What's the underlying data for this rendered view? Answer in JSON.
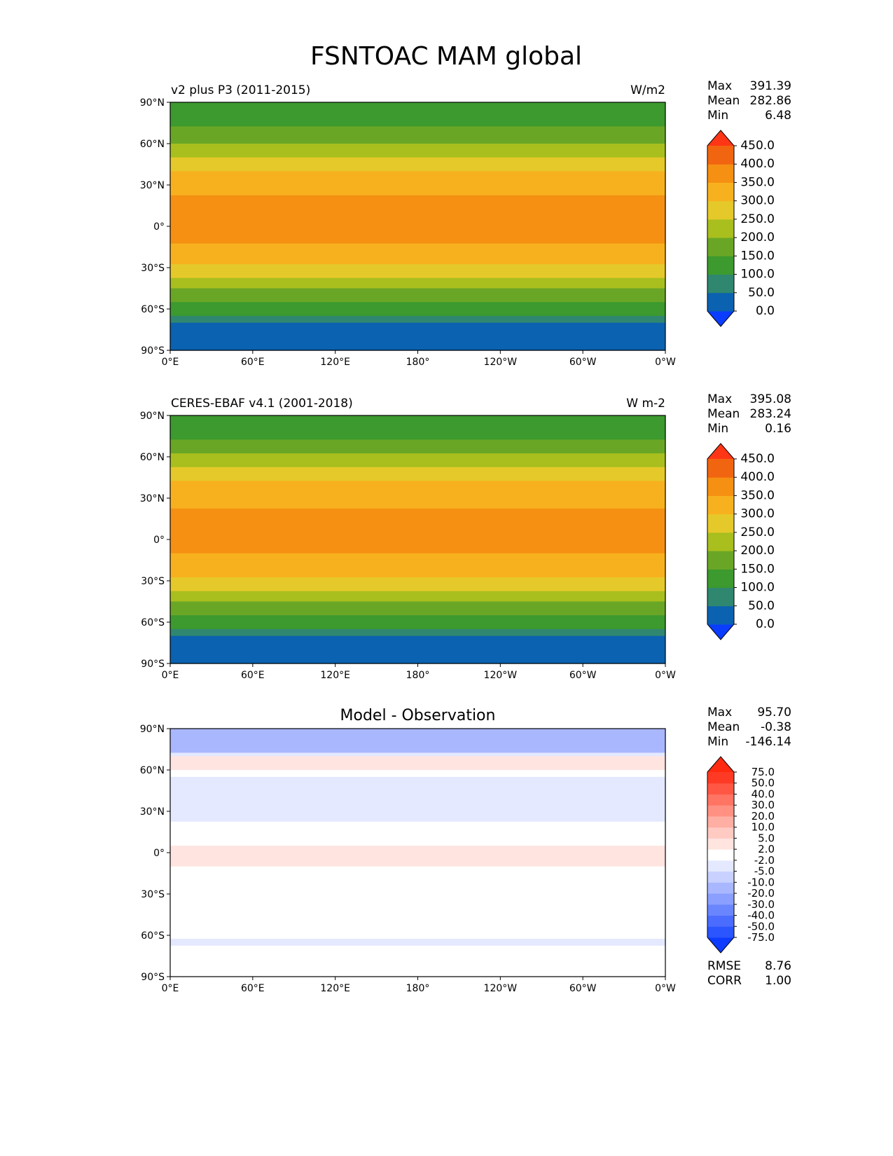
{
  "title": "FSNTOAC MAM global",
  "xticks": [
    "0°E",
    "60°E",
    "120°E",
    "180°",
    "120°W",
    "60°W",
    "0°W"
  ],
  "yticks": [
    "90°N",
    "60°N",
    "30°N",
    "0°",
    "30°S",
    "60°S",
    "90°S"
  ],
  "chart_data": [
    {
      "type": "heatmap",
      "left_title": "v2 plus P3 (2011-2015)",
      "right_title": "W/m2",
      "center_title": "",
      "stats": [
        {
          "label": "Max",
          "value": "391.39"
        },
        {
          "label": "Mean",
          "value": "282.86"
        },
        {
          "label": "Min",
          "value": "6.48"
        }
      ],
      "colorbar": {
        "levels": [
          "0.0",
          "50.0",
          "100.0",
          "150.0",
          "200.0",
          "250.0",
          "300.0",
          "350.0",
          "400.0",
          "450.0"
        ],
        "colors": [
          "#0a3dff",
          "#0b62b0",
          "#2f8770",
          "#3c9a2e",
          "#6aa626",
          "#a8bf1e",
          "#e5c92a",
          "#f8b11e",
          "#f59012",
          "#f26510",
          "#ff3616"
        ],
        "extend": "both"
      },
      "zonal_profile": [
        {
          "lat": 90,
          "value": 100
        },
        {
          "lat": 85,
          "value": 100
        },
        {
          "lat": 80,
          "value": 110
        },
        {
          "lat": 75,
          "value": 140
        },
        {
          "lat": 70,
          "value": 160
        },
        {
          "lat": 65,
          "value": 180
        },
        {
          "lat": 60,
          "value": 205
        },
        {
          "lat": 55,
          "value": 230
        },
        {
          "lat": 50,
          "value": 255
        },
        {
          "lat": 45,
          "value": 280
        },
        {
          "lat": 40,
          "value": 305
        },
        {
          "lat": 35,
          "value": 320
        },
        {
          "lat": 30,
          "value": 330
        },
        {
          "lat": 20,
          "value": 355
        },
        {
          "lat": 0,
          "value": 365
        },
        {
          "lat": -10,
          "value": 360
        },
        {
          "lat": -15,
          "value": 335
        },
        {
          "lat": -25,
          "value": 310
        },
        {
          "lat": -30,
          "value": 285
        },
        {
          "lat": -35,
          "value": 260
        },
        {
          "lat": -40,
          "value": 235
        },
        {
          "lat": -45,
          "value": 205
        },
        {
          "lat": -50,
          "value": 175
        },
        {
          "lat": -55,
          "value": 155
        },
        {
          "lat": -60,
          "value": 120
        },
        {
          "lat": -65,
          "value": 95
        },
        {
          "lat": -70,
          "value": 40
        },
        {
          "lat": -90,
          "value": 20
        }
      ]
    },
    {
      "type": "heatmap",
      "left_title": "CERES-EBAF v4.1 (2001-2018)",
      "right_title": "W m-2",
      "center_title": "",
      "stats": [
        {
          "label": "Max",
          "value": "395.08"
        },
        {
          "label": "Mean",
          "value": "283.24"
        },
        {
          "label": "Min",
          "value": "0.16"
        }
      ],
      "colorbar": {
        "levels": [
          "0.0",
          "50.0",
          "100.0",
          "150.0",
          "200.0",
          "250.0",
          "300.0",
          "350.0",
          "400.0",
          "450.0"
        ],
        "colors": [
          "#0a3dff",
          "#0b62b0",
          "#2f8770",
          "#3c9a2e",
          "#6aa626",
          "#a8bf1e",
          "#e5c92a",
          "#f8b11e",
          "#f59012",
          "#f26510",
          "#ff3616"
        ],
        "extend": "both"
      },
      "zonal_profile": [
        {
          "lat": 90,
          "value": 100
        },
        {
          "lat": 85,
          "value": 110
        },
        {
          "lat": 80,
          "value": 120
        },
        {
          "lat": 75,
          "value": 140
        },
        {
          "lat": 70,
          "value": 160
        },
        {
          "lat": 65,
          "value": 185
        },
        {
          "lat": 60,
          "value": 210
        },
        {
          "lat": 55,
          "value": 235
        },
        {
          "lat": 50,
          "value": 260
        },
        {
          "lat": 45,
          "value": 285
        },
        {
          "lat": 40,
          "value": 305
        },
        {
          "lat": 35,
          "value": 320
        },
        {
          "lat": 30,
          "value": 335
        },
        {
          "lat": 20,
          "value": 355
        },
        {
          "lat": 0,
          "value": 365
        },
        {
          "lat": -10,
          "value": 355
        },
        {
          "lat": -15,
          "value": 330
        },
        {
          "lat": -25,
          "value": 305
        },
        {
          "lat": -30,
          "value": 285
        },
        {
          "lat": -35,
          "value": 260
        },
        {
          "lat": -40,
          "value": 230
        },
        {
          "lat": -45,
          "value": 205
        },
        {
          "lat": -50,
          "value": 180
        },
        {
          "lat": -55,
          "value": 155
        },
        {
          "lat": -60,
          "value": 125
        },
        {
          "lat": -65,
          "value": 95
        },
        {
          "lat": -70,
          "value": 40
        },
        {
          "lat": -90,
          "value": 20
        }
      ]
    },
    {
      "type": "heatmap",
      "left_title": "",
      "right_title": "",
      "center_title": "Model - Observation",
      "stats": [
        {
          "label": "Max",
          "value": "95.70"
        },
        {
          "label": "Mean",
          "value": "-0.38"
        },
        {
          "label": "Min",
          "value": "-146.14"
        }
      ],
      "bottom_stats": [
        {
          "label": "RMSE",
          "value": "8.76"
        },
        {
          "label": "CORR",
          "value": "1.00"
        }
      ],
      "colorbar": {
        "levels": [
          "-75.0",
          "-50.0",
          "-40.0",
          "-30.0",
          "-20.0",
          "-10.0",
          "-5.0",
          "-2.0",
          "2.0",
          "5.0",
          "10.0",
          "20.0",
          "30.0",
          "40.0",
          "50.0",
          "75.0"
        ],
        "colors": [
          "#0d3bff",
          "#2a55ff",
          "#4a6cff",
          "#6a86ff",
          "#8a9fff",
          "#a9b7ff",
          "#c8d1ff",
          "#e4e9ff",
          "#ffffff",
          "#ffe4e0",
          "#ffcac2",
          "#ffaea3",
          "#ff9183",
          "#ff7463",
          "#ff5743",
          "#ff3a24",
          "#ff2a10"
        ],
        "extend": "both"
      },
      "zonal_profile": [
        {
          "lat": 90,
          "value": -20
        },
        {
          "lat": 80,
          "value": -20
        },
        {
          "lat": 75,
          "value": -15
        },
        {
          "lat": 70,
          "value": 2
        },
        {
          "lat": 65,
          "value": 5
        },
        {
          "lat": 60,
          "value": 2
        },
        {
          "lat": 55,
          "value": -2
        },
        {
          "lat": 45,
          "value": -5
        },
        {
          "lat": 35,
          "value": -5
        },
        {
          "lat": 25,
          "value": -3
        },
        {
          "lat": 15,
          "value": 0
        },
        {
          "lat": 0,
          "value": 3
        },
        {
          "lat": -10,
          "value": 2
        },
        {
          "lat": -30,
          "value": 0
        },
        {
          "lat": -50,
          "value": 2
        },
        {
          "lat": -60,
          "value": 0
        },
        {
          "lat": -65,
          "value": -5
        },
        {
          "lat": -70,
          "value": 2
        },
        {
          "lat": -90,
          "value": 0
        }
      ]
    }
  ]
}
